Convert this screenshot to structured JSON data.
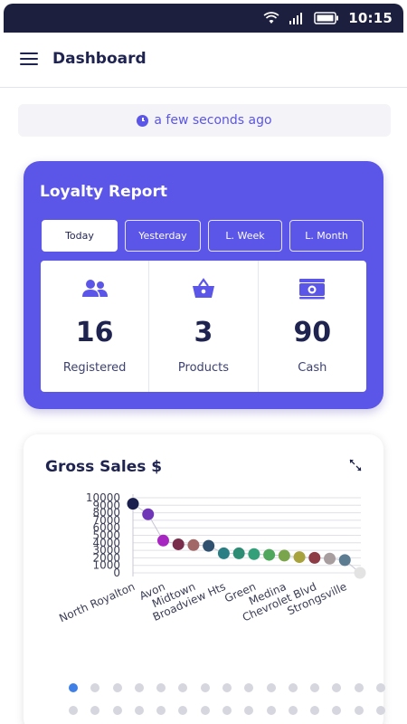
{
  "status_bar": {
    "time": "10:15"
  },
  "header": {
    "title": "Dashboard"
  },
  "last_updated": {
    "text": "a few seconds ago"
  },
  "loyalty": {
    "title": "Loyalty Report",
    "tabs": [
      {
        "label": "Today",
        "active": true
      },
      {
        "label": "Yesterday",
        "active": false
      },
      {
        "label": "L. Week",
        "active": false
      },
      {
        "label": "L. Month",
        "active": false
      }
    ],
    "stats": [
      {
        "icon": "users-icon",
        "value": "16",
        "label": "Registered"
      },
      {
        "icon": "basket-icon",
        "value": "3",
        "label": "Products"
      },
      {
        "icon": "cash-icon",
        "value": "90",
        "label": "Cash"
      }
    ],
    "colors": {
      "accent": "#5b55e8",
      "text": "#1f2350"
    }
  },
  "sales": {
    "title": "Gross Sales $",
    "pager": {
      "rows": [
        15,
        15
      ],
      "active_index": 0
    }
  },
  "chart_data": {
    "type": "scatter",
    "title": "Gross Sales $",
    "ylim": [
      0,
      10000
    ],
    "y_ticks": [
      "10000",
      "9000",
      "8000",
      "7000",
      "6000",
      "5000",
      "4000",
      "3000",
      "2000",
      "1000",
      "0"
    ],
    "x_labels": [
      "North Royalton",
      "Avon",
      "Midtown",
      "Broadview Hts",
      "Green",
      "Medina",
      "Chevrolet Blvd",
      "Strongsville"
    ],
    "values": [
      9200,
      7800,
      4300,
      3800,
      3700,
      3600,
      2600,
      2600,
      2500,
      2400,
      2300,
      2100,
      2000,
      1900,
      1700,
      0
    ],
    "colors": [
      "#1b1f4d",
      "#6f37b8",
      "#a726c2",
      "#7a2e4b",
      "#a26868",
      "#2f506e",
      "#2a7f84",
      "#2d8d74",
      "#33a07a",
      "#4fa75d",
      "#7aa54d",
      "#a8a33c",
      "#8d3b45",
      "#a89ea0",
      "#5c7c92",
      "#e3e3e3"
    ],
    "grid": true
  }
}
